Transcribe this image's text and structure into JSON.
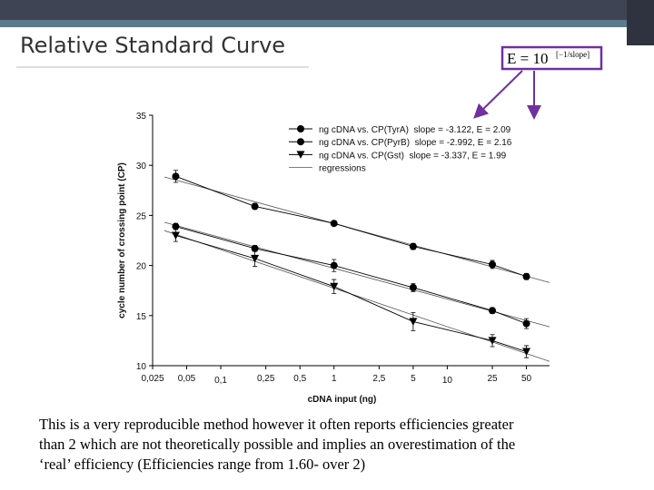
{
  "slide": {
    "title": "Relative Standard Curve",
    "formula_base": "E = 10",
    "formula_exponent": "[−1/slope]",
    "caption_lines": [
      "This is a very reproducible method however it often reports efficiencies greater",
      "than 2 which are not theoretically possible and implies an overestimation of the",
      "‘real’ efficiency (Efficiencies range from 1.60- over 2)"
    ]
  },
  "chart_data": {
    "type": "scatter",
    "xlabel": "cDNA input (ng)",
    "ylabel": "cycle number of crossing point (CP)",
    "x": [
      0.04,
      0.2,
      1,
      5,
      25,
      50
    ],
    "xlog": true,
    "xlim": [
      0.025,
      80
    ],
    "xticks": [
      {
        "value": 0.025,
        "label": "0,025"
      },
      {
        "value": 0.05,
        "label": "0,05"
      },
      {
        "value": 0.1,
        "label": "0,1"
      },
      {
        "value": 0.25,
        "label": "0,25"
      },
      {
        "value": 0.5,
        "label": "0,5"
      },
      1,
      {
        "value": 2.5,
        "label": "2,5"
      },
      5,
      10,
      25,
      50
    ],
    "ylim": [
      10,
      35
    ],
    "yticks": [
      10,
      15,
      20,
      25,
      30,
      35
    ],
    "series": [
      {
        "name": "ng cDNA vs. CP(TyrA)  slope = -3.122, E = 2.09",
        "marker": "circle",
        "color": "#000000",
        "values": [
          28.9,
          25.9,
          24.2,
          21.9,
          20.1,
          18.9
        ],
        "errors": [
          0.6,
          0.3,
          0.2,
          0.3,
          0.4,
          0.3
        ]
      },
      {
        "name": "ng cDNA vs. CP(PyrB)  slope = -2.992, E = 2.16",
        "marker": "circle",
        "color": "#000000",
        "values": [
          23.9,
          21.7,
          20.0,
          17.8,
          15.5,
          14.2
        ],
        "errors": [
          0.3,
          0.3,
          0.6,
          0.4,
          0.3,
          0.5
        ]
      },
      {
        "name": "ng cDNA vs. CP(Gst)  slope = -3.337, E = 1.99",
        "marker": "triangle-down",
        "color": "#000000",
        "values": [
          23.0,
          20.7,
          17.9,
          14.4,
          12.5,
          11.4
        ],
        "errors": [
          0.6,
          0.8,
          0.7,
          0.9,
          0.6,
          0.6
        ]
      }
    ],
    "regression_label": "regressions"
  }
}
